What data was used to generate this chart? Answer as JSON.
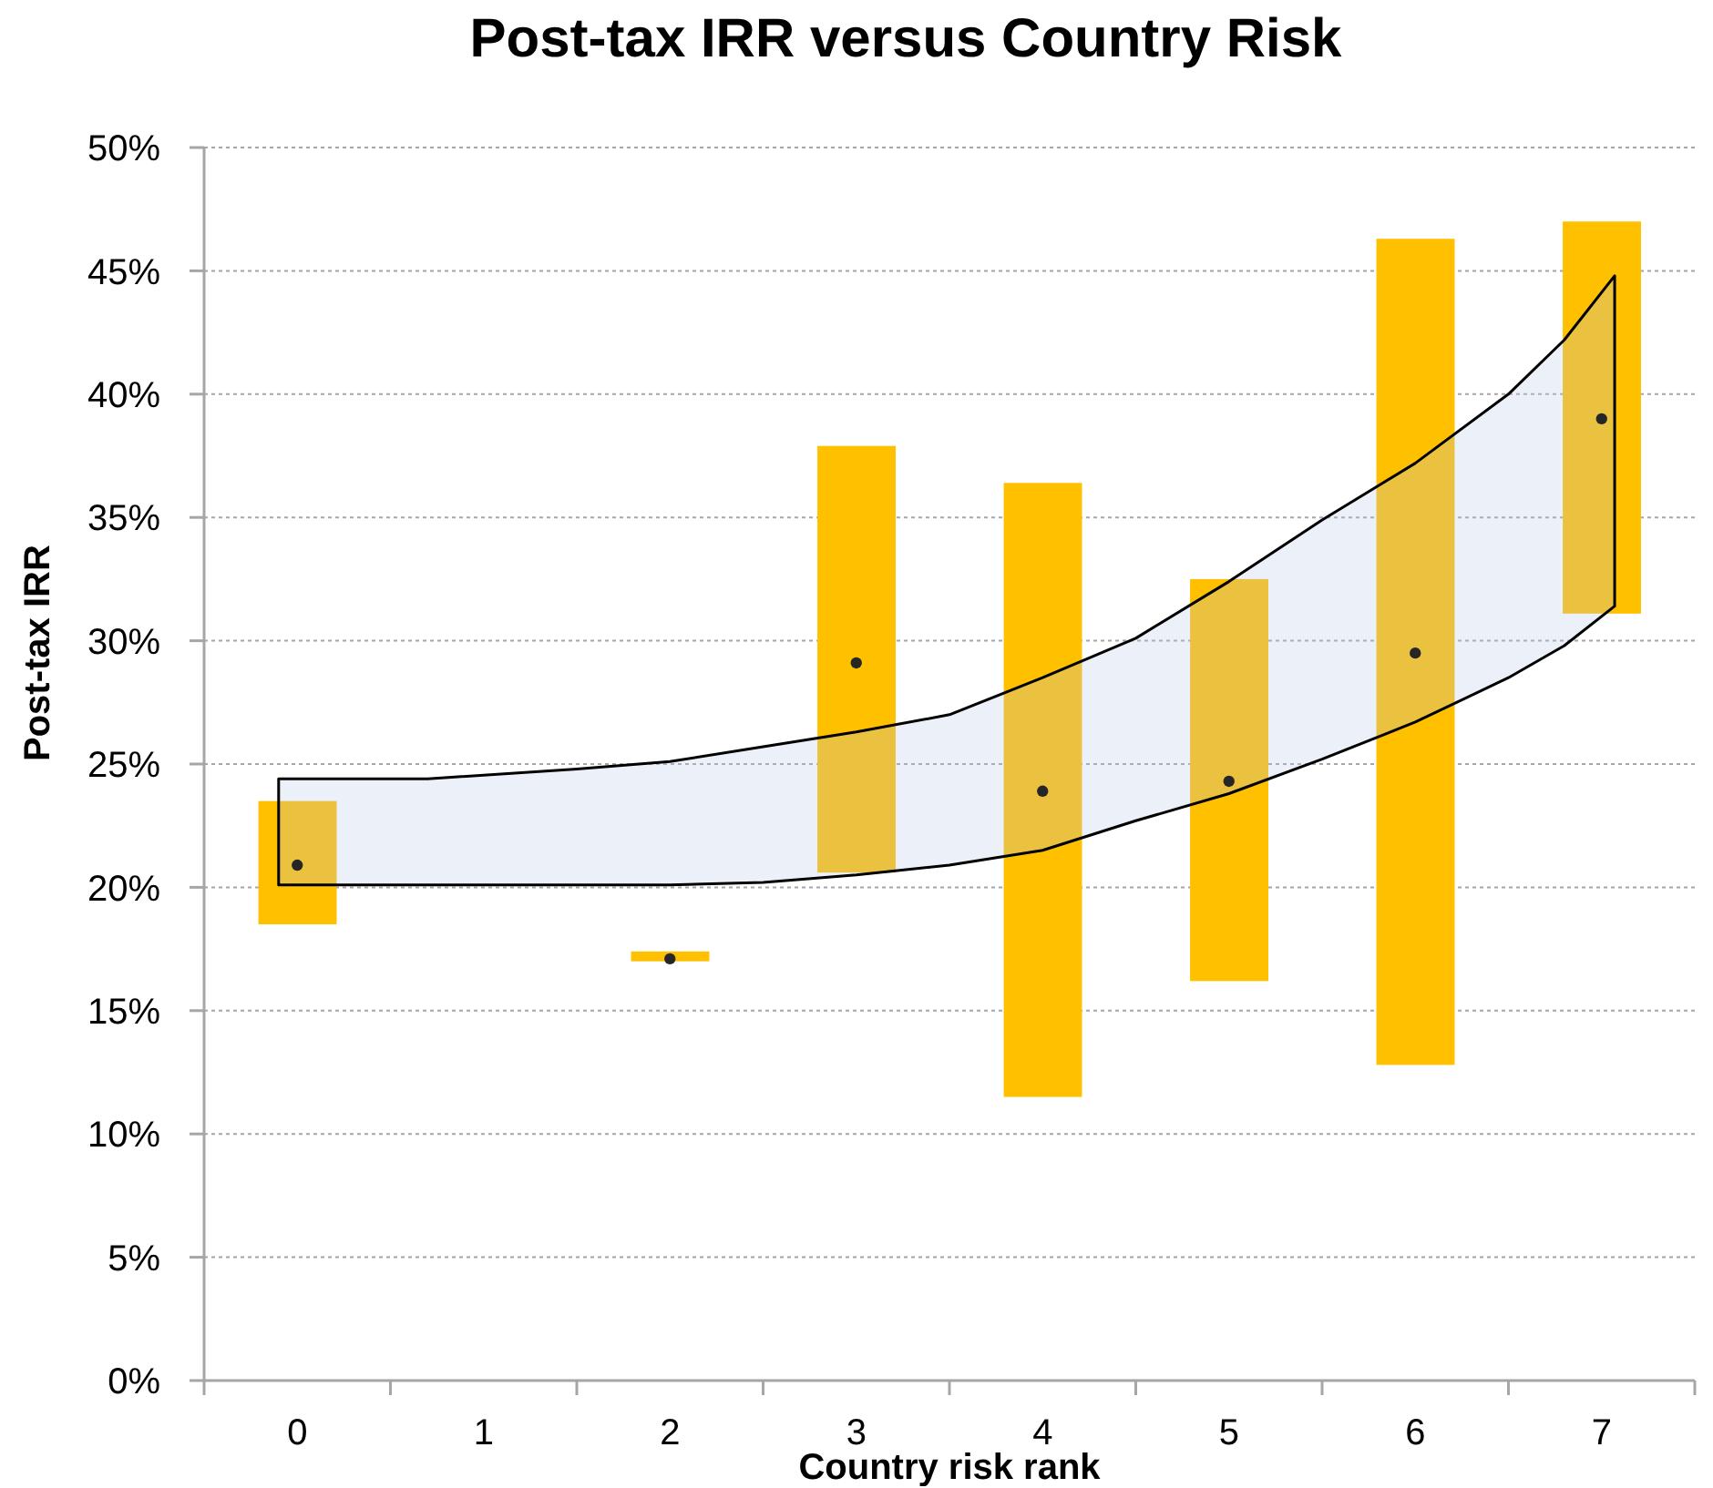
{
  "chart_data": {
    "type": "bar",
    "title": "Post-tax IRR versus Country Risk",
    "xlabel": "Country risk rank",
    "ylabel": "Post-tax IRR",
    "xlim": [
      -0.5,
      7.5
    ],
    "xticks": [
      {
        "value": -0.5,
        "label": null
      },
      0,
      {
        "value": 0.5,
        "label": null
      },
      1,
      {
        "value": 1.5,
        "label": null
      },
      2,
      {
        "value": 2.5,
        "label": null
      },
      3,
      {
        "value": 3.5,
        "label": null
      },
      4,
      {
        "value": 4.5,
        "label": null
      },
      5,
      {
        "value": 5.5,
        "label": null
      },
      6,
      {
        "value": 6.5,
        "label": null
      },
      7,
      {
        "value": 7.5,
        "label": null
      }
    ],
    "series": [
      {
        "color": "#ffc000",
        "x": [
          0,
          2,
          3,
          4,
          5,
          6,
          7
        ],
        "base": [
          18.5,
          17.0,
          20.6,
          11.5,
          16.2,
          12.8,
          31.1
        ],
        "values": [
          5.0,
          0.4,
          17.3,
          24.9,
          16.3,
          33.5,
          15.9
        ]
      },
      {
        "type": "area",
        "color": "#b4c7e7",
        "x": [
          -0.1,
          0.7,
          1.5,
          2,
          2.5,
          3,
          3.5,
          4,
          4.5,
          5,
          5.5,
          6,
          6.5,
          6.8,
          7.07
        ],
        "values": [
          null,
          null,
          null,
          null,
          null,
          null,
          null,
          null,
          null,
          null,
          null,
          null,
          null,
          null,
          null
        ],
        "upper": [
          24.4,
          24.4,
          24.8,
          25.1,
          25.7,
          26.3,
          27.0,
          28.5,
          30.1,
          32.4,
          34.9,
          37.2,
          40.0,
          42.2,
          44.8
        ],
        "lower": [
          20.1,
          20.1,
          20.1,
          20.1,
          20.2,
          20.5,
          20.9,
          21.5,
          22.7,
          23.8,
          25.2,
          26.7,
          28.5,
          29.8,
          31.4
        ]
      },
      {
        "type": "scatter",
        "color": "#262626",
        "marker": "circle",
        "x": [
          0,
          2,
          3,
          4,
          5,
          6,
          7
        ],
        "values": [
          20.9,
          17.1,
          29.1,
          23.9,
          24.3,
          29.5,
          39.0
        ]
      }
    ],
    "ylim": [
      0,
      50
    ],
    "yticks": [
      {
        "value": 0,
        "label": "0%"
      },
      {
        "value": 5,
        "label": "5%"
      },
      {
        "value": 10,
        "label": "10%"
      },
      {
        "value": 15,
        "label": "15%"
      },
      {
        "value": 20,
        "label": "20%"
      },
      {
        "value": 25,
        "label": "25%"
      },
      {
        "value": 30,
        "label": "30%"
      },
      {
        "value": 35,
        "label": "35%"
      },
      {
        "value": 40,
        "label": "40%"
      },
      {
        "value": 45,
        "label": "45%"
      },
      {
        "value": 50,
        "label": "50%"
      }
    ],
    "grid": "y"
  }
}
